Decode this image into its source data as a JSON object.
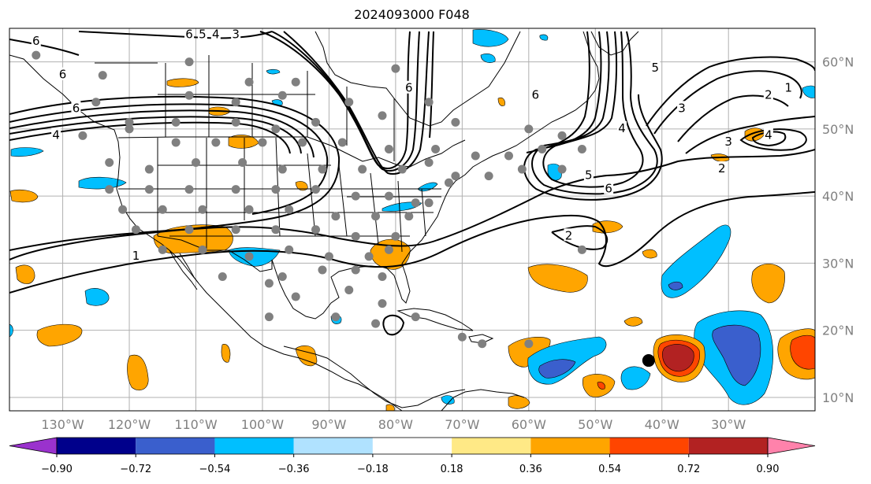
{
  "title": "2024093000 F048",
  "colors": {
    "grid": "#b0b0b0",
    "axis_label": "#808080",
    "station": "#808080",
    "hurricane_core": "#000000"
  },
  "map": {
    "projection": "cylindrical",
    "lon_range": [
      -138,
      -17
    ],
    "lat_range": [
      8,
      65
    ],
    "lon_ticks": [
      {
        "lon": -130,
        "label": "130°W"
      },
      {
        "lon": -120,
        "label": "120°W"
      },
      {
        "lon": -110,
        "label": "110°W"
      },
      {
        "lon": -100,
        "label": "100°W"
      },
      {
        "lon": -90,
        "label": "90°W"
      },
      {
        "lon": -80,
        "label": "80°W"
      },
      {
        "lon": -70,
        "label": "70°W"
      },
      {
        "lon": -60,
        "label": "60°W"
      },
      {
        "lon": -50,
        "label": "50°W"
      },
      {
        "lon": -40,
        "label": "40°W"
      },
      {
        "lon": -30,
        "label": "30°W"
      }
    ],
    "lat_ticks": [
      {
        "lat": 10,
        "label": "10°N"
      },
      {
        "lat": 20,
        "label": "20°N"
      },
      {
        "lat": 30,
        "label": "30°N"
      },
      {
        "lat": 40,
        "label": "40°N"
      },
      {
        "lat": 50,
        "label": "50°N"
      },
      {
        "lat": 60,
        "label": "60°N"
      }
    ],
    "contour_labels": [
      {
        "text": "6",
        "lon": -134,
        "lat": 63
      },
      {
        "text": "6",
        "lon": -111,
        "lat": 64
      },
      {
        "text": "5",
        "lon": -109,
        "lat": 64
      },
      {
        "text": "4",
        "lon": -107,
        "lat": 64
      },
      {
        "text": "3",
        "lon": -104,
        "lat": 64
      },
      {
        "text": "6",
        "lon": -130,
        "lat": 58
      },
      {
        "text": "6",
        "lon": -128,
        "lat": 53
      },
      {
        "text": "4",
        "lon": -131,
        "lat": 49
      },
      {
        "text": "6",
        "lon": -78,
        "lat": 56
      },
      {
        "text": "6",
        "lon": -59,
        "lat": 55
      },
      {
        "text": "5",
        "lon": -51,
        "lat": 43
      },
      {
        "text": "6",
        "lon": -48,
        "lat": 41
      },
      {
        "text": "4",
        "lon": -46,
        "lat": 50
      },
      {
        "text": "5",
        "lon": -41,
        "lat": 59
      },
      {
        "text": "3",
        "lon": -37,
        "lat": 53
      },
      {
        "text": "2",
        "lon": -24,
        "lat": 55
      },
      {
        "text": "1",
        "lon": -21,
        "lat": 56
      },
      {
        "text": "3",
        "lon": -30,
        "lat": 48
      },
      {
        "text": "4",
        "lon": -24,
        "lat": 49
      },
      {
        "text": "2",
        "lon": -31,
        "lat": 44
      },
      {
        "text": "2",
        "lon": -54,
        "lat": 34
      },
      {
        "text": "1",
        "lon": -119,
        "lat": 31
      }
    ],
    "stations": [
      [
        -134,
        61
      ],
      [
        -124,
        58
      ],
      [
        -111,
        60
      ],
      [
        -102,
        57
      ],
      [
        -95,
        57
      ],
      [
        -80,
        59
      ],
      [
        -125,
        54
      ],
      [
        -111,
        55
      ],
      [
        -104,
        54
      ],
      [
        -97,
        55
      ],
      [
        -87,
        54
      ],
      [
        -75,
        54
      ],
      [
        -120,
        51
      ],
      [
        -113,
        51
      ],
      [
        -104,
        51
      ],
      [
        -98,
        50
      ],
      [
        -92,
        51
      ],
      [
        -82,
        52
      ],
      [
        -71,
        51
      ],
      [
        -60,
        50
      ],
      [
        -55,
        49
      ],
      [
        -127,
        49
      ],
      [
        -120,
        50
      ],
      [
        -113,
        48
      ],
      [
        -107,
        48
      ],
      [
        -100,
        48
      ],
      [
        -94,
        48
      ],
      [
        -88,
        48
      ],
      [
        -81,
        47
      ],
      [
        -74,
        47
      ],
      [
        -68,
        46
      ],
      [
        -63,
        46
      ],
      [
        -58,
        47
      ],
      [
        -52,
        47
      ],
      [
        -123,
        45
      ],
      [
        -117,
        44
      ],
      [
        -110,
        45
      ],
      [
        -103,
        45
      ],
      [
        -97,
        44
      ],
      [
        -91,
        44
      ],
      [
        -85,
        44
      ],
      [
        -79,
        44
      ],
      [
        -75,
        45
      ],
      [
        -71,
        43
      ],
      [
        -66,
        43
      ],
      [
        -61,
        44
      ],
      [
        -55,
        44
      ],
      [
        -123,
        41
      ],
      [
        -117,
        41
      ],
      [
        -111,
        41
      ],
      [
        -104,
        41
      ],
      [
        -98,
        41
      ],
      [
        -92,
        41
      ],
      [
        -86,
        40
      ],
      [
        -81,
        40
      ],
      [
        -77,
        39
      ],
      [
        -72,
        42
      ],
      [
        -121,
        38
      ],
      [
        -115,
        38
      ],
      [
        -109,
        38
      ],
      [
        -102,
        38
      ],
      [
        -96,
        38
      ],
      [
        -89,
        37
      ],
      [
        -83,
        37
      ],
      [
        -78,
        37
      ],
      [
        -75,
        39
      ],
      [
        -119,
        35
      ],
      [
        -111,
        35
      ],
      [
        -104,
        35
      ],
      [
        -98,
        35
      ],
      [
        -92,
        35
      ],
      [
        -86,
        34
      ],
      [
        -80,
        34
      ],
      [
        -115,
        32
      ],
      [
        -109,
        32
      ],
      [
        -102,
        31
      ],
      [
        -96,
        32
      ],
      [
        -90,
        31
      ],
      [
        -84,
        31
      ],
      [
        -81,
        32
      ],
      [
        -106,
        28
      ],
      [
        -97,
        28
      ],
      [
        -91,
        29
      ],
      [
        -86,
        29
      ],
      [
        -82,
        28
      ],
      [
        -99,
        27
      ],
      [
        -95,
        25
      ],
      [
        -87,
        26
      ],
      [
        -82,
        24
      ],
      [
        -99,
        22
      ],
      [
        -89,
        22
      ],
      [
        -77,
        22
      ],
      [
        -83,
        21
      ],
      [
        -67,
        18
      ],
      [
        -70,
        19
      ],
      [
        -52,
        32
      ],
      [
        -60,
        18
      ]
    ],
    "hurricane_center": {
      "lon": -42,
      "lat": 15.5
    }
  },
  "colorbar": {
    "tick_labels": [
      "−0.90",
      "−0.72",
      "−0.54",
      "−0.36",
      "−0.18",
      "0.18",
      "0.36",
      "0.54",
      "0.72",
      "0.90"
    ],
    "colors": [
      "#9a32cd",
      "#00008b",
      "#3a5fcd",
      "#00bfff",
      "#b0e2ff",
      "#ffffff",
      "#ffe986",
      "#ffa500",
      "#ff4500",
      "#b22222",
      "#ff82ab"
    ]
  }
}
